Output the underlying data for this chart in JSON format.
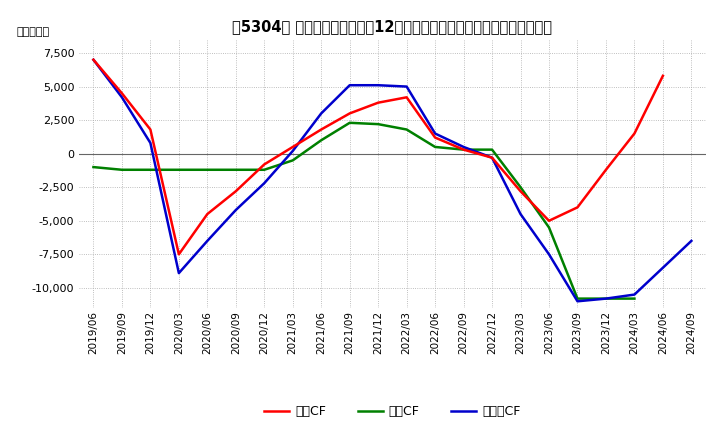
{
  "title": "［5304］ キャッシュフローの12か月移動合計の対前年同期増減額の推移",
  "ylabel": "（百万円）",
  "ylim": [
    -11500,
    8500
  ],
  "yticks": [
    7500,
    5000,
    2500,
    0,
    -2500,
    -5000,
    -7500,
    -10000
  ],
  "x_labels": [
    "2019/06",
    "2019/09",
    "2019/12",
    "2020/03",
    "2020/06",
    "2020/09",
    "2020/12",
    "2021/03",
    "2021/06",
    "2021/09",
    "2021/12",
    "2022/03",
    "2022/06",
    "2022/09",
    "2022/12",
    "2023/03",
    "2023/06",
    "2023/09",
    "2023/12",
    "2024/03",
    "2024/06",
    "2024/09"
  ],
  "営業CF": [
    7000,
    4500,
    1800,
    -7500,
    -4500,
    -2800,
    -800,
    500,
    1800,
    3000,
    3800,
    4200,
    1200,
    300,
    -300,
    -2800,
    -5000,
    -4000,
    -1200,
    1500,
    5800,
    null
  ],
  "投資CF": [
    -1000,
    -1200,
    -1200,
    -1200,
    -1200,
    -1200,
    -1200,
    -500,
    1000,
    2300,
    2200,
    1800,
    500,
    300,
    300,
    -2500,
    -5500,
    -10800,
    -10800,
    -10800,
    null,
    null
  ],
  "フリーCF": [
    7000,
    4200,
    800,
    -8900,
    -6500,
    -4200,
    -2200,
    200,
    3000,
    5100,
    5100,
    5000,
    1500,
    500,
    -300,
    -4500,
    -7500,
    -11000,
    -10800,
    -10500,
    null,
    -6500
  ],
  "color_営業CF": "#ff0000",
  "color_投資CF": "#008000",
  "color_フリーCF": "#0000cc",
  "bg_color": "#ffffff",
  "grid_color": "#aaaaaa"
}
